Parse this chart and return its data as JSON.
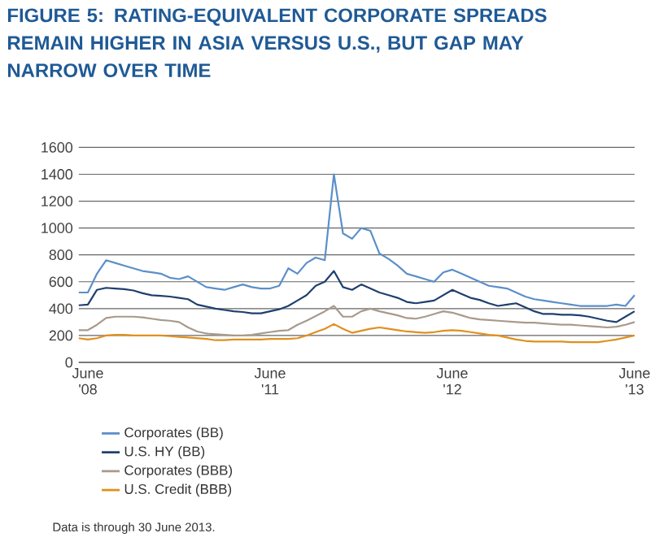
{
  "chart_data": {
    "type": "line",
    "title": "FIGURE 5: RATING-EQUIVALENT CORPORATE SPREADS REMAIN HIGHER IN ASIA VERSUS U.S., BUT GAP MAY NARROW OVER TIME",
    "categories": [
      null,
      "June '08",
      null,
      null,
      null,
      null,
      null,
      null,
      null,
      null,
      null,
      null,
      null,
      null,
      null,
      null,
      null,
      null,
      null,
      null,
      null,
      "June '11",
      null,
      null,
      null,
      null,
      null,
      null,
      null,
      null,
      null,
      null,
      null,
      null,
      null,
      null,
      null,
      null,
      null,
      null,
      null,
      "June '12",
      null,
      null,
      null,
      null,
      null,
      null,
      null,
      null,
      null,
      null,
      null,
      null,
      null,
      null,
      null,
      null,
      null,
      null,
      null,
      "June '13"
    ],
    "ylim": [
      0,
      1600
    ],
    "yticks": [
      0,
      200,
      400,
      600,
      800,
      1000,
      1200,
      1400,
      1600
    ],
    "grid": "y",
    "legend": "bottom",
    "series": [
      {
        "name": "Corporates (BB)",
        "color": "#5b8fc9",
        "values": [
          520,
          520,
          660,
          760,
          740,
          720,
          700,
          680,
          670,
          660,
          630,
          620,
          640,
          600,
          560,
          550,
          540,
          560,
          580,
          560,
          550,
          550,
          570,
          700,
          660,
          740,
          780,
          760,
          1400,
          960,
          920,
          1000,
          980,
          810,
          770,
          720,
          660,
          640,
          620,
          600,
          670,
          690,
          660,
          630,
          600,
          570,
          560,
          550,
          520,
          490,
          470,
          460,
          450,
          440,
          430,
          420,
          420,
          420,
          420,
          430,
          420,
          500
        ]
      },
      {
        "name": "U.S. HY (BB)",
        "color": "#1f3f6e",
        "values": [
          425,
          430,
          540,
          555,
          550,
          545,
          535,
          515,
          500,
          495,
          490,
          480,
          470,
          430,
          415,
          400,
          390,
          380,
          375,
          365,
          365,
          380,
          395,
          420,
          460,
          500,
          570,
          600,
          680,
          560,
          540,
          580,
          550,
          520,
          500,
          480,
          450,
          440,
          450,
          460,
          500,
          540,
          510,
          480,
          465,
          440,
          420,
          430,
          440,
          410,
          380,
          360,
          360,
          355,
          355,
          350,
          340,
          325,
          310,
          300,
          340,
          380
        ]
      },
      {
        "name": "Corporates (BBB)",
        "color": "#a89a8c",
        "values": [
          240,
          240,
          280,
          330,
          340,
          340,
          340,
          335,
          325,
          315,
          310,
          300,
          260,
          230,
          215,
          210,
          205,
          200,
          200,
          205,
          215,
          225,
          235,
          240,
          280,
          310,
          345,
          380,
          420,
          340,
          340,
          380,
          400,
          380,
          365,
          350,
          330,
          325,
          340,
          360,
          380,
          370,
          350,
          330,
          320,
          315,
          310,
          305,
          300,
          295,
          295,
          290,
          285,
          280,
          280,
          275,
          270,
          265,
          260,
          265,
          280,
          300
        ]
      },
      {
        "name": "U.S. Credit (BBB)",
        "color": "#e0901e",
        "values": [
          180,
          170,
          180,
          200,
          205,
          205,
          200,
          200,
          200,
          200,
          195,
          190,
          185,
          180,
          175,
          165,
          165,
          170,
          170,
          170,
          170,
          175,
          175,
          175,
          180,
          200,
          225,
          250,
          285,
          250,
          220,
          235,
          250,
          260,
          250,
          240,
          230,
          225,
          220,
          225,
          235,
          240,
          235,
          225,
          215,
          205,
          200,
          185,
          170,
          160,
          155,
          155,
          155,
          155,
          150,
          150,
          150,
          150,
          160,
          170,
          185,
          200
        ]
      }
    ],
    "annotations": [
      "Data is through 30 June 2013."
    ]
  }
}
